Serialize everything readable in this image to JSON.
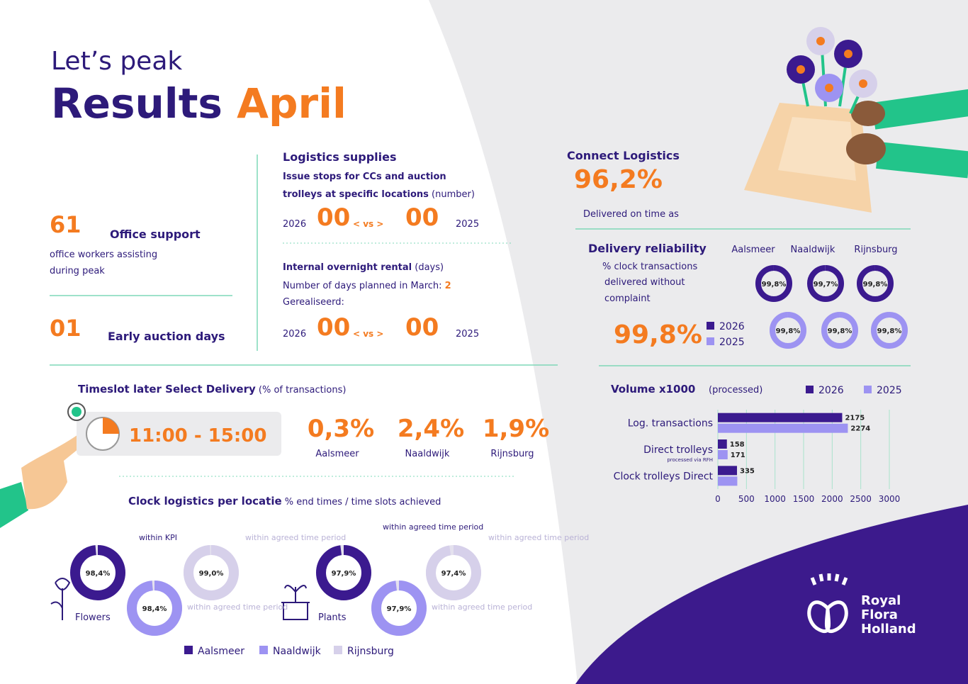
{
  "header": {
    "kicker": "Let’s peak",
    "title_a": "Results",
    "title_b": "April"
  },
  "office": {
    "count": "61",
    "label": "Office support",
    "note_1": "office workers assisting",
    "note_2": "during peak",
    "early_count": "01",
    "early_label": "Early auction days"
  },
  "logistics": {
    "title": "Logistics supplies",
    "stops_line_1": "Issue stops for CCs and auction",
    "stops_line_2": "trolleys at specific locations",
    "stops_unit": "(number)",
    "stops": {
      "year_a": "2026",
      "value_a": "00",
      "vs": "< vs >",
      "value_b": "00",
      "year_b": "2025"
    },
    "rental_title": "Internal overnight rental",
    "rental_unit": "(days)",
    "planned_text": "Number of days planned in March:",
    "planned_value": "2",
    "realised": "Gerealiseerd:",
    "rental": {
      "year_a": "2026",
      "value_a": "00",
      "vs": "< vs >",
      "value_b": "00",
      "year_b": "2025"
    }
  },
  "connect": {
    "title": "Connect Logistics",
    "value": "96,2%",
    "note": "Delivered on time as"
  },
  "reliability": {
    "title": "Delivery reliability",
    "note_1": "% clock transactions",
    "note_2": "delivered without",
    "note_3": "complaint",
    "value": "99,8%",
    "locations": [
      "Aalsmeer",
      "Naaldwijk",
      "Rijnsburg"
    ],
    "series": [
      {
        "name": "2026",
        "color": "#3b1a8f",
        "values": [
          99.8,
          99.7,
          99.8
        ],
        "value_labels": [
          "99,8%",
          "99,7%",
          "99,8%"
        ]
      },
      {
        "name": "2025",
        "color": "#9d93f2",
        "values": [
          99.8,
          99.8,
          99.8
        ],
        "value_labels": [
          "99,8%",
          "99,8%",
          "99,8%"
        ]
      }
    ]
  },
  "timeslot": {
    "title": "Timeslot later Select Delivery",
    "unit": "(% of transactions)",
    "time": "11:00 - 15:00",
    "items": [
      {
        "value": "0,3%",
        "location": "Aalsmeer"
      },
      {
        "value": "2,4%",
        "location": "Naaldwijk"
      },
      {
        "value": "1,9%",
        "location": "Rijnsburg"
      }
    ]
  },
  "clock": {
    "title": "Clock logistics per locatie",
    "subtitle": "% end times / time slots achieved",
    "legend": [
      {
        "name": "Aalsmeer",
        "color": "#3b1a8f"
      },
      {
        "name": "Naaldwijk",
        "color": "#9d93f2"
      },
      {
        "name": "Rijnsburg",
        "color": "#d6d0ea"
      }
    ],
    "groups": [
      {
        "name": "Flowers",
        "values": [
          98.4,
          98.4,
          99.0
        ],
        "value_labels": [
          "98,4%",
          "98,4%",
          "99,0%"
        ],
        "notes": [
          "within KPI",
          "within agreed time period",
          "within agreed time period"
        ]
      },
      {
        "name": "Plants",
        "values": [
          97.9,
          97.9,
          97.4
        ],
        "value_labels": [
          "97,9%",
          "97,9%",
          "97,4%"
        ],
        "notes": [
          "within agreed time period",
          "within agreed time period",
          "within agreed time period"
        ]
      }
    ]
  },
  "chart_data": {
    "type": "bar",
    "orientation": "horizontal",
    "title": "Volume x1000",
    "subtitle": "(processed)",
    "categories": [
      "Log. transactions",
      "Direct trolleys",
      "Clock trolleys Direct"
    ],
    "category_notes": [
      null,
      "processed via RFH",
      null
    ],
    "series": [
      {
        "name": "2026",
        "color": "#3b1a8f",
        "values": [
          2175,
          158,
          335
        ],
        "value_labels": [
          "2175",
          "158",
          "335"
        ]
      },
      {
        "name": "2025",
        "color": "#9d93f2",
        "values": [
          2274,
          171,
          340
        ],
        "value_labels": [
          "2274",
          "171",
          null
        ]
      }
    ],
    "xlim": [
      0,
      3000
    ],
    "xticks": [
      0,
      500,
      1000,
      1500,
      2000,
      2500,
      3000
    ],
    "grid": true
  },
  "logo": [
    "Royal",
    "Flora",
    "Holland"
  ]
}
